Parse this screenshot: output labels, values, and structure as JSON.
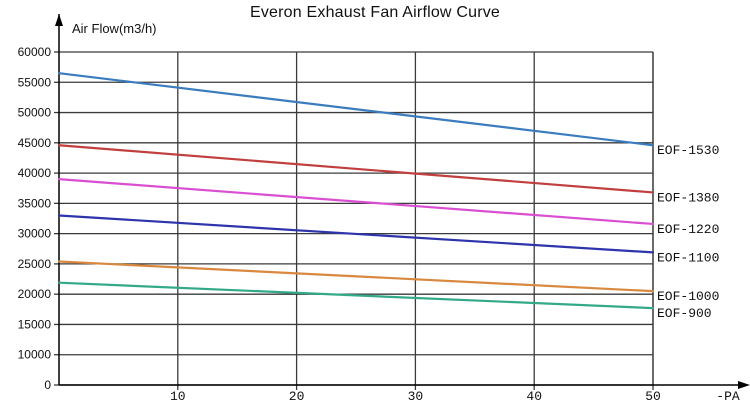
{
  "chart_data": {
    "type": "line",
    "title": "Everon Exhaust Fan Airflow Curve",
    "ylabel": "Air Flow(m3/h)",
    "xlabel": "-PA",
    "x_unit_label": "-PA",
    "x": [
      0,
      50
    ],
    "x_ticks": [
      10,
      20,
      30,
      40,
      50
    ],
    "xlim": [
      0,
      50
    ],
    "ylim": [
      0,
      60000
    ],
    "y_gridline_labels": [
      "60000",
      "55000",
      "50000",
      "45000",
      "40000",
      "35000",
      "30000",
      "25000",
      "20000",
      "15000",
      "10000",
      "0"
    ],
    "y_axis_note": "bottom interval 0-10000 is drawn with the same height as the 5000-unit intervals",
    "grid": true,
    "legend_position": "inline labels right of plot at each line end",
    "series": [
      {
        "name": "EOF-1530",
        "color": "#3A7CBE",
        "values": [
          56500,
          44600
        ]
      },
      {
        "name": "EOF-1380",
        "color": "#C13F3F",
        "values": [
          44600,
          36800
        ]
      },
      {
        "name": "EOF-1220",
        "color": "#D94FD2",
        "values": [
          39000,
          31600
        ]
      },
      {
        "name": "EOF-1100",
        "color": "#2E34AB",
        "values": [
          33000,
          26900
        ]
      },
      {
        "name": "EOF-1000",
        "color": "#D8893F",
        "values": [
          25400,
          20500
        ]
      },
      {
        "name": "EOF-900",
        "color": "#33A988",
        "values": [
          21900,
          17700
        ]
      }
    ]
  },
  "colors": {
    "grid": "#3b3b3b",
    "axis": "#000000",
    "background": "#ffffff",
    "text": "#111111"
  }
}
